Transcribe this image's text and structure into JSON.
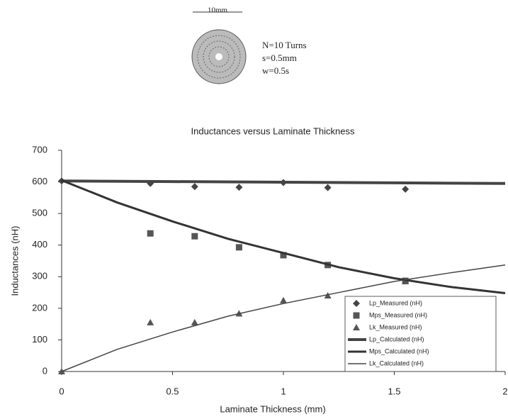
{
  "diagram": {
    "scale": "10mm",
    "labels": [
      "N=10 Turns",
      "s=0.5mm",
      "w=0.5s"
    ]
  },
  "chart_data": {
    "type": "line",
    "title": "Inductances versus Laminate Thickness",
    "x_label": "Laminate Thickness (mm)",
    "y_label": "Inductances (nH)",
    "xlim": [
      0,
      2
    ],
    "xticks": [
      0,
      0.5,
      1,
      1.5,
      2
    ],
    "ylim": [
      0,
      700
    ],
    "yticks": [
      0,
      100,
      200,
      300,
      400,
      500,
      600,
      700
    ],
    "legend": "lower right",
    "series": [
      {
        "name": "Lp_Measured (nH)",
        "color": "#444",
        "marker": "diamond",
        "x": [
          0,
          0.4,
          0.6,
          0.8,
          1.0,
          1.2,
          1.55
        ],
        "values": [
          603,
          595,
          585,
          583,
          598,
          582,
          577
        ]
      },
      {
        "name": "Mps_Measured (nH)",
        "color": "#555",
        "marker": "square",
        "x": [
          0.4,
          0.6,
          0.8,
          1.0,
          1.2,
          1.55
        ],
        "values": [
          437,
          428,
          393,
          368,
          337,
          287
        ]
      },
      {
        "name": "Lk_Measured (nH)",
        "color": "#555",
        "marker": "triangle",
        "x": [
          0,
          0.4,
          0.6,
          0.8,
          1.0,
          1.2,
          1.55
        ],
        "values": [
          0,
          155,
          155,
          183,
          225,
          240,
          285
        ]
      },
      {
        "name": "Lp_Calculated (nH)",
        "color": "#444",
        "x": [
          0,
          0.5,
          1,
          1.5,
          2
        ],
        "values": [
          603,
          601,
          599,
          597,
          595
        ]
      },
      {
        "name": "Mps_Calculated (nH)",
        "color": "#333",
        "x": [
          0,
          0.25,
          0.5,
          0.75,
          1,
          1.25,
          1.5,
          1.75,
          2
        ],
        "values": [
          605,
          535,
          475,
          420,
          375,
          330,
          295,
          268,
          248
        ]
      },
      {
        "name": "Lk_Calculated (nH)",
        "color": "#444",
        "x": [
          0,
          0.25,
          0.5,
          0.75,
          1,
          1.25,
          1.5,
          1.75,
          2
        ],
        "values": [
          0,
          70,
          125,
          175,
          215,
          250,
          285,
          312,
          337
        ]
      }
    ]
  }
}
